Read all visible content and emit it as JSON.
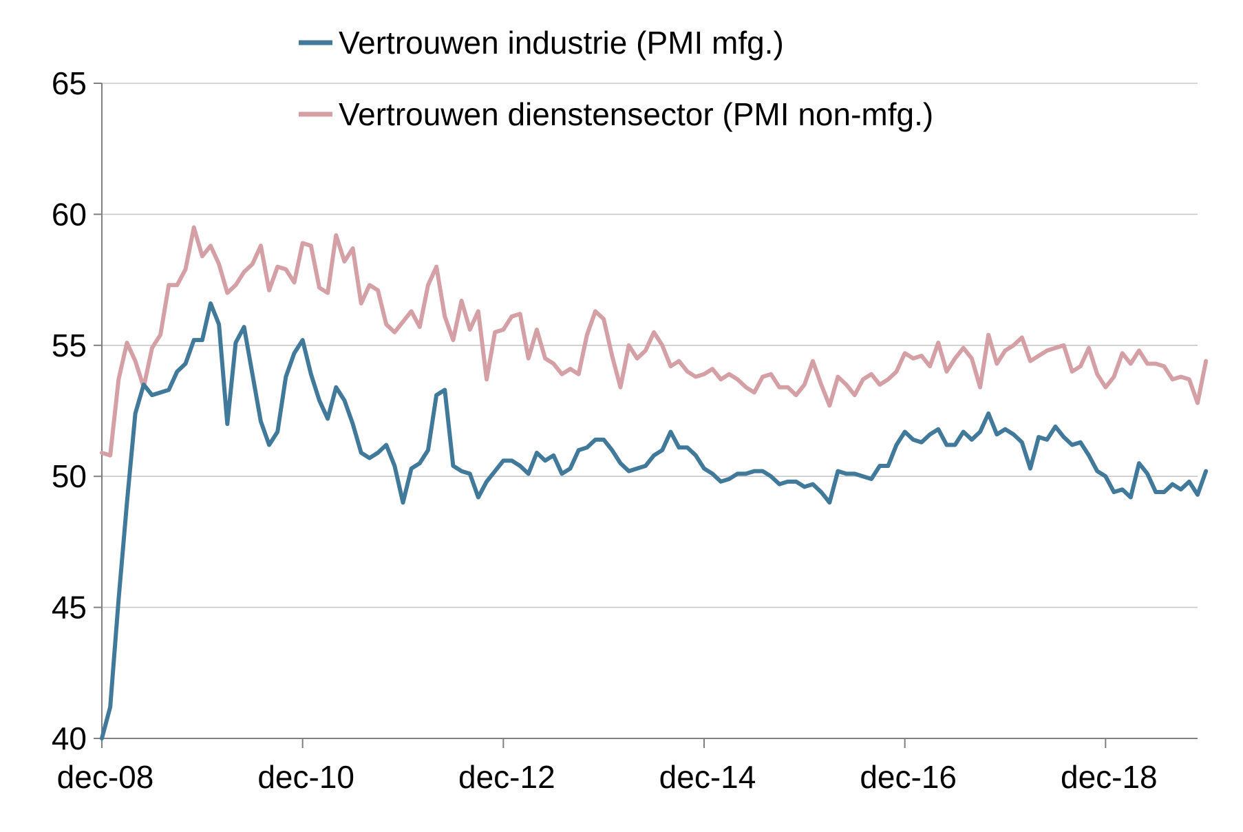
{
  "chart_data": {
    "type": "line",
    "title": "",
    "xlabel": "",
    "ylabel": "",
    "ylim": [
      40,
      65
    ],
    "yticks": [
      "40",
      "45",
      "50",
      "55",
      "60",
      "65"
    ],
    "xticks": [
      {
        "label": "dec-08",
        "date": "2008-12"
      },
      {
        "label": "dec-10",
        "date": "2010-12"
      },
      {
        "label": "dec-12",
        "date": "2012-12"
      },
      {
        "label": "dec-14",
        "date": "2014-12"
      },
      {
        "label": "dec-16",
        "date": "2016-12"
      },
      {
        "label": "dec-18",
        "date": "2018-12"
      }
    ],
    "x_start": "2008-12",
    "x_end": "2019-11",
    "grid": "horizontal",
    "legend_position": "top",
    "series": [
      {
        "name": "Vertrouwen industrie (PMI mfg.)",
        "color": "#41799a",
        "values": [
          40.0,
          41.2,
          45.3,
          49.0,
          52.4,
          53.5,
          53.1,
          53.2,
          53.3,
          54.0,
          54.3,
          55.2,
          55.2,
          56.6,
          55.8,
          52.0,
          55.1,
          55.7,
          53.9,
          52.1,
          51.2,
          51.7,
          53.8,
          54.7,
          55.2,
          53.9,
          52.9,
          52.2,
          53.4,
          52.9,
          52.0,
          50.9,
          50.7,
          50.9,
          51.2,
          50.4,
          49.0,
          50.3,
          50.5,
          51.0,
          53.1,
          53.3,
          50.4,
          50.2,
          50.1,
          49.2,
          49.8,
          50.2,
          50.6,
          50.6,
          50.4,
          50.1,
          50.9,
          50.6,
          50.8,
          50.1,
          50.3,
          51.0,
          51.1,
          51.4,
          51.4,
          51.0,
          50.5,
          50.2,
          50.3,
          50.4,
          50.8,
          51.0,
          51.7,
          51.1,
          51.1,
          50.8,
          50.3,
          50.1,
          49.8,
          49.9,
          50.1,
          50.1,
          50.2,
          50.2,
          50.0,
          49.7,
          49.8,
          49.8,
          49.6,
          49.7,
          49.4,
          49.0,
          50.2,
          50.1,
          50.1,
          50.0,
          49.9,
          50.4,
          50.4,
          51.2,
          51.7,
          51.4,
          51.3,
          51.6,
          51.8,
          51.2,
          51.2,
          51.7,
          51.4,
          51.7,
          52.4,
          51.6,
          51.8,
          51.6,
          51.3,
          50.3,
          51.5,
          51.4,
          51.9,
          51.5,
          51.2,
          51.3,
          50.8,
          50.2,
          50.0,
          49.4,
          49.5,
          49.2,
          50.5,
          50.1,
          49.4,
          49.4,
          49.7,
          49.5,
          49.8,
          49.3,
          50.2
        ]
      },
      {
        "name": "Vertrouwen dienstensector (PMI non-mfg.)",
        "color": "#d4a0a6",
        "values": [
          50.9,
          50.8,
          53.7,
          55.1,
          54.4,
          53.4,
          54.9,
          55.4,
          57.3,
          57.3,
          57.9,
          59.5,
          58.4,
          58.8,
          58.1,
          57.0,
          57.3,
          57.8,
          58.1,
          58.8,
          57.1,
          58.0,
          57.9,
          57.4,
          58.9,
          58.8,
          57.2,
          57.0,
          59.2,
          58.2,
          58.7,
          56.6,
          57.3,
          57.1,
          55.8,
          55.5,
          55.9,
          56.3,
          55.7,
          57.3,
          58.0,
          56.1,
          55.2,
          56.7,
          55.6,
          56.3,
          53.7,
          55.5,
          55.6,
          56.1,
          56.2,
          54.5,
          55.6,
          54.5,
          54.3,
          53.9,
          54.1,
          53.9,
          55.4,
          56.3,
          56.0,
          54.6,
          53.4,
          55.0,
          54.5,
          54.8,
          55.5,
          55.0,
          54.2,
          54.4,
          54.0,
          53.8,
          53.9,
          54.1,
          53.7,
          53.9,
          53.7,
          53.4,
          53.2,
          53.8,
          53.9,
          53.4,
          53.4,
          53.1,
          53.5,
          54.4,
          53.5,
          52.7,
          53.8,
          53.5,
          53.1,
          53.7,
          53.9,
          53.5,
          53.7,
          54.0,
          54.7,
          54.5,
          54.6,
          54.2,
          55.1,
          54.0,
          54.5,
          54.9,
          54.5,
          53.4,
          55.4,
          54.3,
          54.8,
          55.0,
          55.3,
          54.4,
          54.6,
          54.8,
          54.9,
          55.0,
          54.0,
          54.2,
          54.9,
          53.9,
          53.4,
          53.8,
          54.7,
          54.3,
          54.8,
          54.3,
          54.3,
          54.2,
          53.7,
          53.8,
          53.7,
          52.8,
          54.4
        ]
      }
    ]
  }
}
